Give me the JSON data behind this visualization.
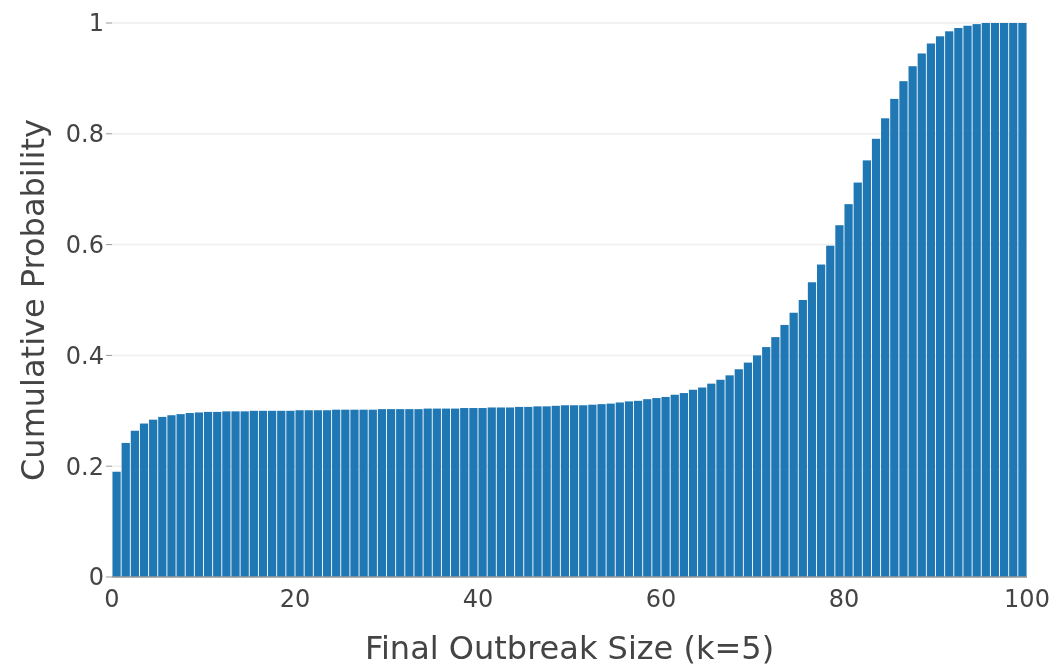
{
  "chart_data": {
    "type": "histogram",
    "xlabel": "Final Outbreak Size (k=5)",
    "ylabel": "Cumulative Probability",
    "bins": [
      0,
      1,
      2,
      3,
      4,
      5,
      6,
      7,
      8,
      9,
      10,
      11,
      12,
      13,
      14,
      15,
      16,
      17,
      18,
      19,
      20,
      21,
      22,
      23,
      24,
      25,
      26,
      27,
      28,
      29,
      30,
      31,
      32,
      33,
      34,
      35,
      36,
      37,
      38,
      39,
      40,
      41,
      42,
      43,
      44,
      45,
      46,
      47,
      48,
      49,
      50,
      51,
      52,
      53,
      54,
      55,
      56,
      57,
      58,
      59,
      60,
      61,
      62,
      63,
      64,
      65,
      66,
      67,
      68,
      69,
      70,
      71,
      72,
      73,
      74,
      75,
      76,
      77,
      78,
      79,
      80,
      81,
      82,
      83,
      84,
      85,
      86,
      87,
      88,
      89,
      90,
      91,
      92,
      93,
      94,
      95,
      96,
      97,
      98,
      99,
      100
    ],
    "values": [
      0.19,
      0.242,
      0.264,
      0.277,
      0.284,
      0.289,
      0.292,
      0.294,
      0.296,
      0.297,
      0.298,
      0.298,
      0.299,
      0.299,
      0.299,
      0.3,
      0.3,
      0.3,
      0.3,
      0.3,
      0.301,
      0.301,
      0.301,
      0.301,
      0.302,
      0.302,
      0.302,
      0.302,
      0.302,
      0.303,
      0.303,
      0.303,
      0.303,
      0.303,
      0.304,
      0.304,
      0.304,
      0.304,
      0.305,
      0.305,
      0.305,
      0.306,
      0.306,
      0.306,
      0.307,
      0.307,
      0.308,
      0.308,
      0.309,
      0.31,
      0.31,
      0.31,
      0.311,
      0.312,
      0.313,
      0.315,
      0.317,
      0.318,
      0.321,
      0.323,
      0.325,
      0.329,
      0.332,
      0.338,
      0.342,
      0.349,
      0.356,
      0.364,
      0.375,
      0.387,
      0.4,
      0.415,
      0.433,
      0.455,
      0.477,
      0.5,
      0.532,
      0.564,
      0.598,
      0.635,
      0.673,
      0.712,
      0.752,
      0.791,
      0.828,
      0.863,
      0.895,
      0.922,
      0.945,
      0.963,
      0.976,
      0.985,
      0.991,
      0.995,
      0.998,
      1,
      1,
      1,
      1,
      1
    ],
    "color": "#1f77b4",
    "xlim": [
      0,
      100
    ],
    "xticks": [
      0,
      20,
      40,
      60,
      80,
      100
    ],
    "ylim": [
      0,
      1
    ],
    "yticks": [
      0,
      0.2,
      0.4,
      0.6,
      0.8,
      1
    ],
    "grid": "y"
  }
}
